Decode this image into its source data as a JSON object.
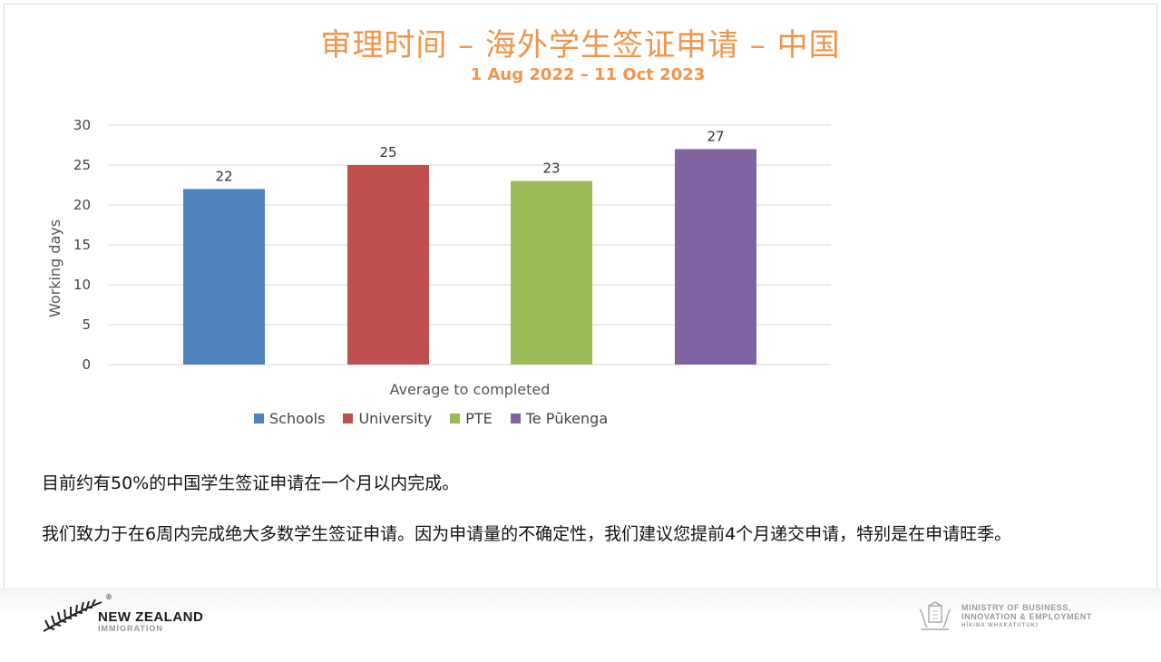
{
  "slide": {
    "title": "审理时间 – 海外学生签证申请 – 中国",
    "subtitle": "1 Aug 2022 – 11 Oct 2023",
    "paragraph1": "目前约有50%的中国学生签证申请在一个月以内完成。",
    "paragraph2": "我们致力于在6周内完成绝大多数学生签证申请。因为申请量的不确定性，我们建议您提前4个月递交申请，特别是在申请旺季。"
  },
  "chart_data": {
    "type": "bar",
    "categories": [
      "Average to completed"
    ],
    "series": [
      {
        "name": "Schools",
        "values": [
          22
        ],
        "color": "#4F81BD"
      },
      {
        "name": "University",
        "values": [
          25
        ],
        "color": "#C0504D"
      },
      {
        "name": "PTE",
        "values": [
          23
        ],
        "color": "#9BBB59"
      },
      {
        "name": "Te Pūkenga",
        "values": [
          27
        ],
        "color": "#8064A2"
      }
    ],
    "ylabel": "Working days",
    "xlabel": "Average to completed",
    "ylim": [
      0,
      30
    ],
    "yticks": [
      0,
      5,
      10,
      15,
      20,
      25,
      30
    ],
    "grid": true,
    "legend": "bottom",
    "data_labels": true
  },
  "footer": {
    "brand_name": "NEW ZEALAND",
    "brand_sub": "IMMIGRATION",
    "brand_registered": "®",
    "ministry_line1": "MINISTRY OF BUSINESS,",
    "ministry_line2": "INNOVATION & EMPLOYMENT",
    "ministry_line3": "HĪKINA WHAKATUTUKI"
  }
}
